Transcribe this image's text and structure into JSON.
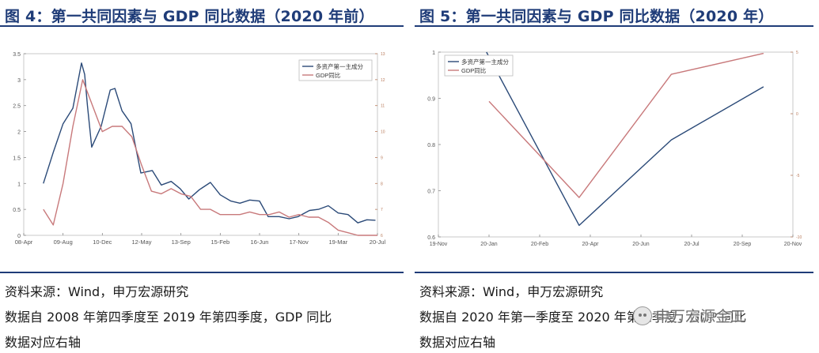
{
  "left": {
    "title": "图 4：第一共同因素与 GDP 同比数据（2020 年前）",
    "source_lines": [
      "资料来源：Wind，申万宏源研究",
      "数据自 2008 年第四季度至 2019 年第四季度，GDP 同比",
      "数据对应右轴"
    ]
  },
  "right": {
    "title": "图 5：第一共同因素与 GDP 同比数据（2020 年）",
    "source_lines": [
      "资料来源：Wind，申万宏源研究",
      "数据自 2020 年第一季度至 2020 年第三季度，GDP 同比",
      "数据对应右轴"
    ]
  },
  "watermark": "申万宏源金工",
  "colors": {
    "title": "#1f3c78",
    "factor": "#2b4a78",
    "gdp": "#c8797b",
    "axis_right": "#b87a5a"
  },
  "chart_data": [
    {
      "type": "line",
      "legend": [
        "多资产第一主成分",
        "GDP同比"
      ],
      "x_tick_labels": [
        "08-Apr",
        "09-Aug",
        "10-Dec",
        "12-May",
        "13-Sep",
        "15-Feb",
        "16-Jun",
        "17-Nov",
        "19-Mar",
        "20-Jul"
      ],
      "y_left_ticks": [
        "0",
        "0.5",
        "1",
        "1.5",
        "2",
        "2.5",
        "3",
        "3.5"
      ],
      "y_left_lim": [
        0,
        3.5
      ],
      "y_right_ticks": [
        "6",
        "7",
        "8",
        "9",
        "10",
        "11",
        "12",
        "13"
      ],
      "y_right_lim": [
        6,
        13
      ],
      "x_lim": [
        0,
        9
      ],
      "series": [
        {
          "name": "多资产第一主成分",
          "axis": "left",
          "x": [
            0.5,
            0.75,
            1.0,
            1.25,
            1.47,
            1.55,
            1.62,
            1.73,
            1.97,
            2.2,
            2.32,
            2.5,
            2.73,
            2.98,
            3.27,
            3.5,
            3.75,
            3.98,
            4.2,
            4.47,
            4.75,
            5.0,
            5.27,
            5.5,
            5.75,
            6.0,
            6.22,
            6.5,
            6.75,
            6.98,
            7.27,
            7.5,
            7.75,
            8.0,
            8.25,
            8.5,
            8.73,
            8.95
          ],
          "values": [
            1.0,
            1.6,
            2.15,
            2.45,
            3.32,
            3.1,
            2.5,
            1.7,
            2.1,
            2.8,
            2.83,
            2.4,
            2.15,
            1.2,
            1.25,
            0.97,
            1.04,
            0.9,
            0.7,
            0.88,
            1.02,
            0.78,
            0.66,
            0.62,
            0.68,
            0.66,
            0.36,
            0.36,
            0.32,
            0.36,
            0.48,
            0.5,
            0.57,
            0.43,
            0.4,
            0.24,
            0.3,
            0.29
          ]
        },
        {
          "name": "GDP同比",
          "axis": "right",
          "x": [
            0.5,
            0.75,
            1.0,
            1.25,
            1.5,
            1.75,
            2.0,
            2.25,
            2.5,
            2.75,
            3.0,
            3.25,
            3.5,
            3.75,
            4.0,
            4.25,
            4.5,
            4.75,
            5.0,
            5.25,
            5.5,
            5.75,
            6.0,
            6.25,
            6.5,
            6.75,
            7.0,
            7.25,
            7.5,
            7.75,
            8.0,
            8.25,
            8.5,
            8.75,
            9.0
          ],
          "values": [
            7.0,
            6.4,
            8.0,
            10.2,
            12.0,
            11.0,
            10.0,
            10.2,
            10.2,
            9.8,
            8.7,
            7.7,
            7.6,
            7.8,
            7.6,
            7.5,
            7.0,
            7.0,
            6.8,
            6.8,
            6.8,
            6.9,
            6.8,
            6.8,
            6.9,
            6.7,
            6.8,
            6.7,
            6.7,
            6.5,
            6.2,
            6.1,
            6.0,
            5.9,
            5.8
          ]
        }
      ]
    },
    {
      "type": "line",
      "legend": [
        "多资产第一主成分",
        "GDP同比"
      ],
      "x_tick_labels": [
        "19-Nov",
        "20-Jan",
        "20-Feb",
        "20-Apr",
        "20-Jun",
        "20-Jul",
        "20-Sep",
        "20-Nov"
      ],
      "y_left_ticks": [
        "0.6",
        "0.7",
        "0.8",
        "0.9",
        "1"
      ],
      "y_left_lim": [
        0.6,
        1.0
      ],
      "y_right_ticks": [
        "-10",
        "-5",
        "0",
        "5"
      ],
      "y_right_lim": [
        -10,
        5
      ],
      "x_lim": [
        0,
        7
      ],
      "series": [
        {
          "name": "多资产第一主成分",
          "axis": "left",
          "x": [
            0.95,
            2.78,
            4.6,
            6.42
          ],
          "values": [
            1.0,
            0.625,
            0.81,
            0.925
          ]
        },
        {
          "name": "GDP同比",
          "axis": "right",
          "x": [
            1.0,
            2.78,
            4.6,
            6.42
          ],
          "values": [
            1.0,
            -6.8,
            3.2,
            4.9
          ]
        }
      ]
    }
  ]
}
